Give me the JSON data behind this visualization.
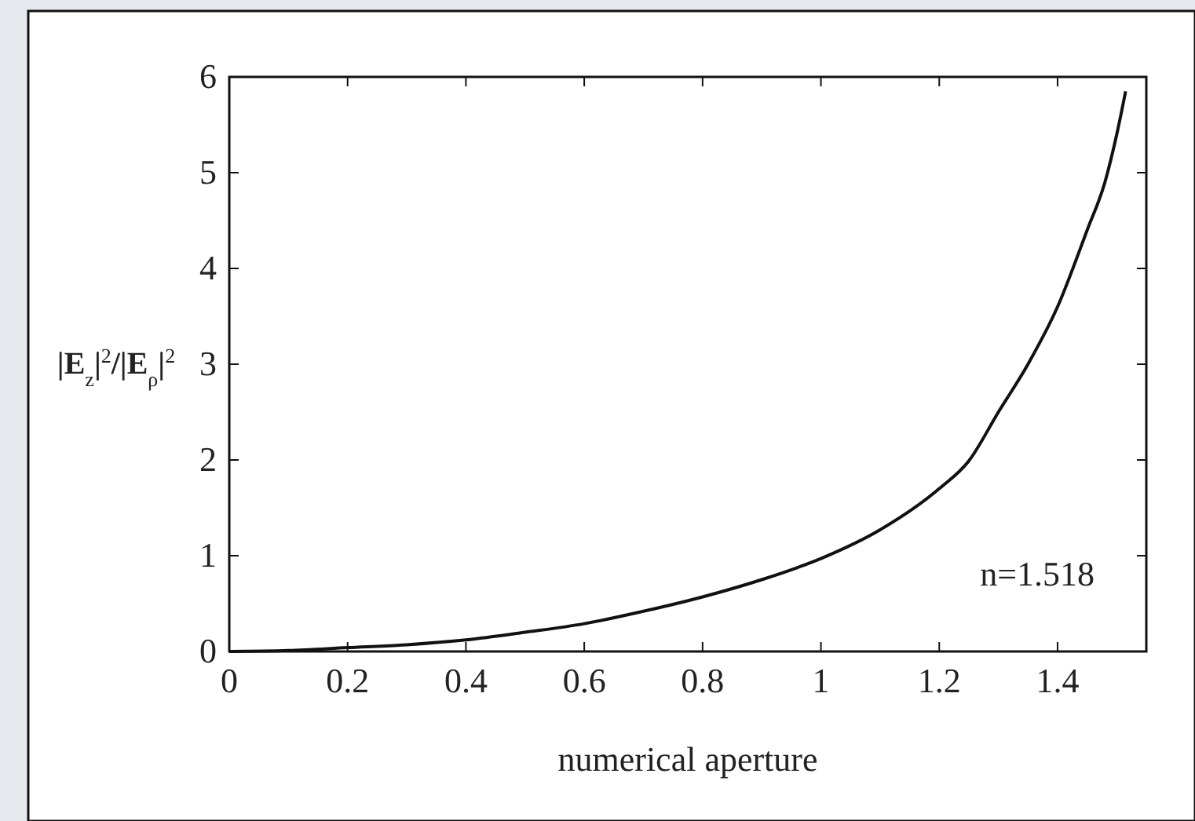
{
  "chart_data": {
    "type": "line",
    "xlabel": "numerical aperture",
    "ylabel": "|E$_{z}$|$^{2}$/|E$_{ρ}$|$^{2}$",
    "x": [
      0,
      0.1,
      0.2,
      0.3,
      0.4,
      0.5,
      0.6,
      0.7,
      0.8,
      0.9,
      1.0,
      1.1,
      1.2,
      1.25,
      1.3,
      1.35,
      1.4,
      1.45,
      1.48,
      1.5,
      1.515
    ],
    "series": [
      {
        "color": "#111111",
        "values": [
          0,
          0.01,
          0.04,
          0.07,
          0.12,
          0.2,
          0.29,
          0.42,
          0.57,
          0.75,
          0.97,
          1.27,
          1.7,
          1.99,
          2.5,
          3.0,
          3.6,
          4.4,
          4.9,
          5.4,
          5.85
        ]
      }
    ],
    "xlim": [
      0,
      1.55
    ],
    "ylim": [
      0,
      6
    ],
    "xticks": [
      0,
      0.2,
      0.4,
      0.6,
      0.8,
      1,
      1.2,
      1.4
    ],
    "yticks": [
      0,
      1,
      2,
      3,
      4,
      5,
      6
    ],
    "annotations": [
      "n=1.518"
    ],
    "grid": false,
    "line_style": "solid",
    "marker": "none"
  }
}
